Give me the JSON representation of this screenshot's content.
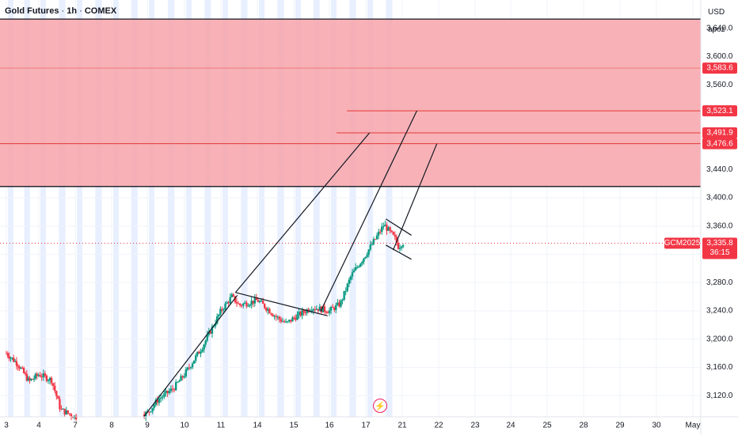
{
  "header": {
    "symbol": "Gold Futures",
    "interval": "1h",
    "exchange": "COMEX",
    "currency": "USD",
    "scale_mode": "apoz"
  },
  "colors": {
    "zone_fill": "#f7a5aa",
    "bull": "#089981",
    "bear": "#f23645",
    "session_shade": "#e8efff",
    "level_line": "#e53935",
    "badge": "#f23645",
    "axis_text": "#131722"
  },
  "chart_data": {
    "type": "candlestick",
    "title": "Gold Futures · 1h · COMEX",
    "ylabel": "USD",
    "ylim": [
      3090,
      3680
    ],
    "y_ticks": [
      "3,120.0",
      "3,160.0",
      "3,200.0",
      "3,240.0",
      "3,280.0",
      "3,320.0",
      "3,360.0",
      "3,400.0",
      "3,440.0",
      "3,480.0",
      "3,520.0",
      "3,560.0",
      "3,600.0",
      "3,640.0"
    ],
    "x_ticks": [
      "3",
      "4",
      "7",
      "8",
      "9",
      "10",
      "11",
      "14",
      "15",
      "16",
      "17",
      "21",
      "22",
      "23",
      "24",
      "25",
      "28",
      "29",
      "30",
      "May"
    ],
    "grid": true,
    "resistance_zone": [
      3416,
      3653
    ],
    "price_levels": [
      {
        "label": "3,583.6",
        "value": 3583.6
      },
      {
        "label": "3,523.1",
        "value": 3523.1
      },
      {
        "label": "3,491.9",
        "value": 3491.9
      },
      {
        "label": "3,476.6",
        "value": 3476.6
      }
    ],
    "current": {
      "ticker": "GCM2025",
      "price": 3335.8,
      "price_label": "3,335.8",
      "countdown": "36:15"
    },
    "price_path": [
      [
        0,
        3180
      ],
      [
        0.35,
        3165
      ],
      [
        0.7,
        3140
      ],
      [
        1.0,
        3150
      ],
      [
        1.35,
        3142
      ],
      [
        1.6,
        3100
      ],
      [
        2.0,
        3090
      ],
      [
        3.0,
        3095
      ],
      [
        3.6,
        3090
      ],
      [
        4.0,
        3095
      ],
      [
        4.3,
        3115
      ],
      [
        4.7,
        3130
      ],
      [
        5.0,
        3150
      ],
      [
        5.5,
        3190
      ],
      [
        6.0,
        3240
      ],
      [
        6.3,
        3260
      ],
      [
        6.5,
        3248
      ],
      [
        7.0,
        3255
      ],
      [
        7.3,
        3242
      ],
      [
        7.5,
        3232
      ],
      [
        7.8,
        3222
      ],
      [
        8.0,
        3230
      ],
      [
        8.5,
        3245
      ],
      [
        9.0,
        3240
      ],
      [
        9.3,
        3250
      ],
      [
        9.6,
        3290
      ],
      [
        10.0,
        3320
      ],
      [
        10.3,
        3345
      ],
      [
        10.5,
        3362
      ],
      [
        10.65,
        3352
      ],
      [
        10.8,
        3342
      ],
      [
        10.9,
        3330
      ],
      [
        11.0,
        3337
      ],
      [
        11.05,
        3335.8
      ]
    ],
    "drawings": [
      {
        "type": "trendline",
        "from": [
          3.9,
          3090
        ],
        "to": [
          6.45,
          3262
        ]
      },
      {
        "type": "trendline",
        "from": [
          6.4,
          3266
        ],
        "to": [
          8.95,
          3233
        ]
      },
      {
        "type": "trendline",
        "from": [
          6.4,
          3266
        ],
        "to": [
          10.1,
          3491.9
        ]
      },
      {
        "type": "trendline",
        "from": [
          8.75,
          3239
        ],
        "to": [
          11.4,
          3523.1
        ]
      },
      {
        "type": "trendline",
        "from": [
          10.75,
          3326
        ],
        "to": [
          11.95,
          3476.6
        ]
      },
      {
        "type": "trendline",
        "from": [
          10.55,
          3370
        ],
        "to": [
          11.25,
          3347
        ]
      },
      {
        "type": "trendline",
        "from": [
          10.55,
          3333
        ],
        "to": [
          11.25,
          3313
        ]
      }
    ]
  }
}
